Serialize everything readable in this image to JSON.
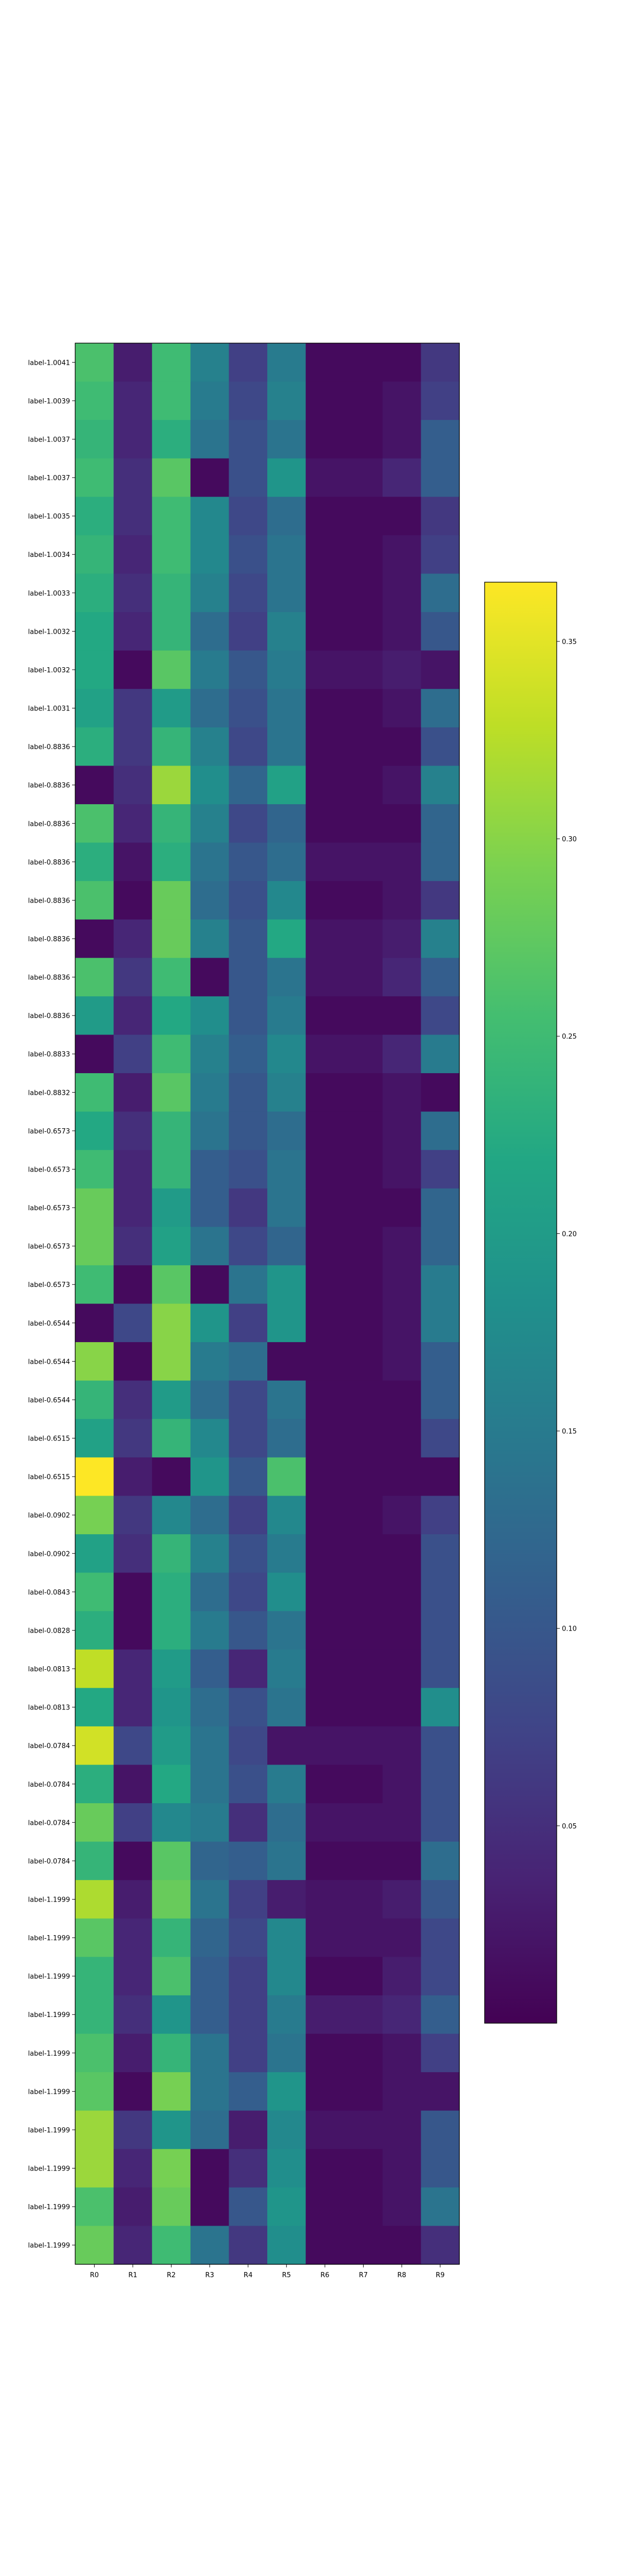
{
  "chart_data": {
    "type": "heatmap",
    "title": "",
    "xlabel": "",
    "ylabel": "",
    "grid": false,
    "legend": "colorbar-right",
    "colormap": "viridis",
    "color_range": [
      0.0,
      0.365
    ],
    "columns": [
      "R0",
      "R1",
      "R2",
      "R3",
      "R4",
      "R5",
      "R6",
      "R7",
      "R8",
      "R9"
    ],
    "rows": [
      "label-1.0041",
      "label-1.0039",
      "label-1.0037",
      "label-1.0037",
      "label-1.0035",
      "label-1.0034",
      "label-1.0033",
      "label-1.0032",
      "label-1.0032",
      "label-1.0031",
      "label-0.8836",
      "label-0.8836",
      "label-0.8836",
      "label-0.8836",
      "label-0.8836",
      "label-0.8836",
      "label-0.8836",
      "label-0.8836",
      "label-0.8833",
      "label-0.8832",
      "label-0.6573",
      "label-0.6573",
      "label-0.6573",
      "label-0.6573",
      "label-0.6573",
      "label-0.6544",
      "label-0.6544",
      "label-0.6544",
      "label-0.6515",
      "label-0.6515",
      "label-0.0902",
      "label-0.0902",
      "label-0.0843",
      "label-0.0828",
      "label-0.0813",
      "label-0.0813",
      "label-0.0784",
      "label-0.0784",
      "label-0.0784",
      "label-0.0784",
      "label-1.1999",
      "label-1.1999",
      "label-1.1999",
      "label-1.1999",
      "label-1.1999",
      "label-1.1999",
      "label-1.1999",
      "label-1.1999",
      "label-1.1999",
      "label-1.1999"
    ],
    "values": [
      [
        0.26,
        0.03,
        0.25,
        0.16,
        0.07,
        0.15,
        0.01,
        0.01,
        0.01,
        0.06
      ],
      [
        0.25,
        0.04,
        0.25,
        0.15,
        0.08,
        0.16,
        0.01,
        0.01,
        0.02,
        0.07
      ],
      [
        0.24,
        0.04,
        0.23,
        0.14,
        0.09,
        0.14,
        0.01,
        0.01,
        0.02,
        0.11
      ],
      [
        0.25,
        0.05,
        0.27,
        0.01,
        0.09,
        0.19,
        0.02,
        0.02,
        0.04,
        0.11
      ],
      [
        0.23,
        0.05,
        0.25,
        0.17,
        0.08,
        0.13,
        0.01,
        0.01,
        0.01,
        0.06
      ],
      [
        0.24,
        0.04,
        0.25,
        0.17,
        0.09,
        0.14,
        0.01,
        0.01,
        0.02,
        0.07
      ],
      [
        0.23,
        0.05,
        0.24,
        0.16,
        0.08,
        0.14,
        0.01,
        0.01,
        0.02,
        0.13
      ],
      [
        0.22,
        0.04,
        0.24,
        0.13,
        0.07,
        0.16,
        0.01,
        0.01,
        0.02,
        0.1
      ],
      [
        0.22,
        0.01,
        0.27,
        0.15,
        0.1,
        0.15,
        0.02,
        0.02,
        0.03,
        0.02
      ],
      [
        0.21,
        0.06,
        0.2,
        0.13,
        0.09,
        0.14,
        0.01,
        0.01,
        0.02,
        0.13
      ],
      [
        0.23,
        0.06,
        0.24,
        0.16,
        0.08,
        0.14,
        0.01,
        0.01,
        0.01,
        0.09
      ],
      [
        0.01,
        0.05,
        0.31,
        0.18,
        0.12,
        0.21,
        0.01,
        0.01,
        0.02,
        0.16
      ],
      [
        0.26,
        0.04,
        0.24,
        0.16,
        0.08,
        0.12,
        0.01,
        0.01,
        0.01,
        0.12
      ],
      [
        0.23,
        0.02,
        0.23,
        0.14,
        0.1,
        0.13,
        0.02,
        0.02,
        0.02,
        0.12
      ],
      [
        0.26,
        0.01,
        0.28,
        0.13,
        0.09,
        0.17,
        0.01,
        0.01,
        0.02,
        0.06
      ],
      [
        0.01,
        0.04,
        0.28,
        0.16,
        0.1,
        0.22,
        0.02,
        0.02,
        0.03,
        0.16
      ],
      [
        0.26,
        0.06,
        0.25,
        0.01,
        0.1,
        0.14,
        0.02,
        0.02,
        0.04,
        0.11
      ],
      [
        0.2,
        0.04,
        0.22,
        0.18,
        0.1,
        0.15,
        0.01,
        0.01,
        0.01,
        0.08
      ],
      [
        0.01,
        0.07,
        0.25,
        0.16,
        0.11,
        0.17,
        0.02,
        0.02,
        0.04,
        0.15
      ],
      [
        0.25,
        0.03,
        0.27,
        0.15,
        0.1,
        0.16,
        0.01,
        0.01,
        0.02,
        0.01
      ],
      [
        0.22,
        0.05,
        0.24,
        0.14,
        0.1,
        0.13,
        0.01,
        0.01,
        0.02,
        0.13
      ],
      [
        0.25,
        0.04,
        0.24,
        0.11,
        0.09,
        0.14,
        0.01,
        0.01,
        0.02,
        0.07
      ],
      [
        0.28,
        0.04,
        0.2,
        0.11,
        0.06,
        0.14,
        0.01,
        0.01,
        0.01,
        0.12
      ],
      [
        0.28,
        0.05,
        0.21,
        0.14,
        0.08,
        0.12,
        0.01,
        0.01,
        0.02,
        0.12
      ],
      [
        0.25,
        0.01,
        0.27,
        0.01,
        0.14,
        0.19,
        0.01,
        0.01,
        0.02,
        0.15
      ],
      [
        0.01,
        0.08,
        0.3,
        0.19,
        0.07,
        0.19,
        0.01,
        0.01,
        0.02,
        0.15
      ],
      [
        0.3,
        0.01,
        0.3,
        0.15,
        0.13,
        0.01,
        0.01,
        0.01,
        0.02,
        0.11
      ],
      [
        0.24,
        0.05,
        0.2,
        0.13,
        0.08,
        0.14,
        0.01,
        0.01,
        0.01,
        0.11
      ],
      [
        0.21,
        0.06,
        0.24,
        0.17,
        0.08,
        0.13,
        0.01,
        0.01,
        0.01,
        0.08
      ],
      [
        0.365,
        0.03,
        0.01,
        0.19,
        0.1,
        0.26,
        0.01,
        0.01,
        0.01,
        0.01
      ],
      [
        0.29,
        0.06,
        0.17,
        0.13,
        0.07,
        0.17,
        0.01,
        0.01,
        0.02,
        0.07
      ],
      [
        0.21,
        0.05,
        0.24,
        0.16,
        0.09,
        0.15,
        0.01,
        0.01,
        0.01,
        0.09
      ],
      [
        0.25,
        0.01,
        0.23,
        0.13,
        0.08,
        0.18,
        0.01,
        0.01,
        0.01,
        0.09
      ],
      [
        0.23,
        0.01,
        0.23,
        0.15,
        0.1,
        0.14,
        0.01,
        0.01,
        0.01,
        0.09
      ],
      [
        0.33,
        0.04,
        0.2,
        0.11,
        0.04,
        0.15,
        0.01,
        0.01,
        0.01,
        0.09
      ],
      [
        0.22,
        0.04,
        0.19,
        0.13,
        0.09,
        0.14,
        0.01,
        0.01,
        0.01,
        0.18
      ],
      [
        0.34,
        0.08,
        0.2,
        0.14,
        0.08,
        0.02,
        0.02,
        0.02,
        0.02,
        0.09
      ],
      [
        0.23,
        0.02,
        0.22,
        0.14,
        0.09,
        0.15,
        0.01,
        0.01,
        0.02,
        0.09
      ],
      [
        0.28,
        0.07,
        0.17,
        0.15,
        0.05,
        0.13,
        0.02,
        0.02,
        0.02,
        0.09
      ],
      [
        0.24,
        0.01,
        0.27,
        0.12,
        0.11,
        0.14,
        0.01,
        0.01,
        0.01,
        0.13
      ],
      [
        0.32,
        0.03,
        0.28,
        0.14,
        0.07,
        0.03,
        0.02,
        0.02,
        0.03,
        0.1
      ],
      [
        0.27,
        0.04,
        0.24,
        0.12,
        0.08,
        0.17,
        0.02,
        0.02,
        0.02,
        0.08
      ],
      [
        0.24,
        0.04,
        0.26,
        0.11,
        0.07,
        0.17,
        0.01,
        0.01,
        0.03,
        0.08
      ],
      [
        0.24,
        0.05,
        0.19,
        0.11,
        0.07,
        0.15,
        0.03,
        0.03,
        0.04,
        0.11
      ],
      [
        0.26,
        0.03,
        0.24,
        0.14,
        0.07,
        0.14,
        0.01,
        0.01,
        0.02,
        0.07
      ],
      [
        0.27,
        0.01,
        0.29,
        0.14,
        0.11,
        0.19,
        0.01,
        0.01,
        0.02,
        0.02
      ],
      [
        0.31,
        0.06,
        0.19,
        0.13,
        0.03,
        0.17,
        0.02,
        0.02,
        0.02,
        0.1
      ],
      [
        0.31,
        0.04,
        0.29,
        0.01,
        0.05,
        0.18,
        0.01,
        0.01,
        0.02,
        0.1
      ],
      [
        0.26,
        0.03,
        0.28,
        0.01,
        0.1,
        0.19,
        0.01,
        0.01,
        0.02,
        0.14
      ],
      [
        0.28,
        0.04,
        0.25,
        0.14,
        0.06,
        0.18,
        0.01,
        0.01,
        0.01,
        0.05
      ]
    ],
    "colorbar": {
      "ticks": [
        0.05,
        0.1,
        0.15,
        0.2,
        0.25,
        0.3,
        0.35
      ],
      "tick_labels": [
        "0.05",
        "0.10",
        "0.15",
        "0.20",
        "0.25",
        "0.30",
        "0.35"
      ]
    }
  }
}
